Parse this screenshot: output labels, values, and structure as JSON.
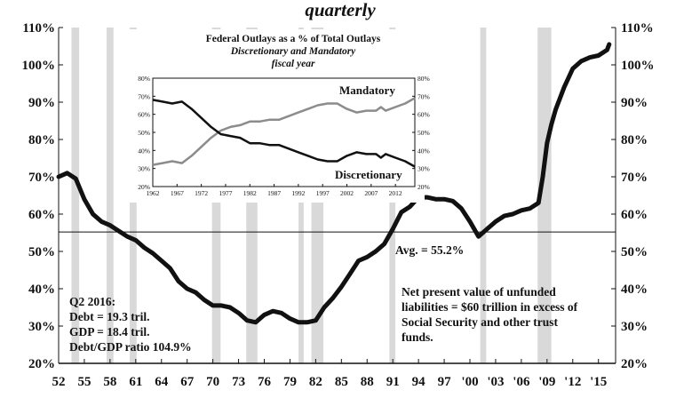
{
  "chart_data": {
    "type": "line",
    "title": "quarterly",
    "y_axis": {
      "min": 20,
      "max": 110,
      "tick_labels": [
        "20%",
        "30%",
        "40%",
        "50%",
        "60%",
        "70%",
        "80%",
        "90%",
        "100%",
        "110%"
      ]
    },
    "x_axis": {
      "min": 1952,
      "max": 2017,
      "tick_labels": [
        "52",
        "55",
        "58",
        "61",
        "64",
        "67",
        "70",
        "73",
        "76",
        "79",
        "82",
        "85",
        "88",
        "91",
        "94",
        "97",
        "'00",
        "'03",
        "'06",
        "'09",
        "'12",
        "'15"
      ]
    },
    "recessions": [
      [
        1953.5,
        1954.4
      ],
      [
        1957.6,
        1958.4
      ],
      [
        1960.3,
        1961.1
      ],
      [
        1969.9,
        1970.9
      ],
      [
        1973.9,
        1975.2
      ],
      [
        1980.0,
        1980.6
      ],
      [
        1981.5,
        1982.9
      ],
      [
        1990.6,
        1991.3
      ],
      [
        2001.2,
        2001.9
      ],
      [
        2007.9,
        2009.5
      ]
    ],
    "series": [
      {
        "points": [
          [
            1952.0,
            70.0
          ],
          [
            1953.0,
            71.0
          ],
          [
            1954.0,
            69.5
          ],
          [
            1955.0,
            64.0
          ],
          [
            1956.0,
            60.0
          ],
          [
            1957.0,
            58.0
          ],
          [
            1958.0,
            57.0
          ],
          [
            1959.0,
            55.5
          ],
          [
            1960.0,
            54.0
          ],
          [
            1961.0,
            53.0
          ],
          [
            1962.0,
            51.0
          ],
          [
            1963.0,
            49.5
          ],
          [
            1964.0,
            47.5
          ],
          [
            1965.0,
            45.5
          ],
          [
            1966.0,
            42.0
          ],
          [
            1967.0,
            40.0
          ],
          [
            1968.0,
            39.0
          ],
          [
            1969.0,
            37.0
          ],
          [
            1970.0,
            35.5
          ],
          [
            1971.0,
            35.5
          ],
          [
            1972.0,
            35.0
          ],
          [
            1973.0,
            33.5
          ],
          [
            1974.0,
            31.5
          ],
          [
            1975.0,
            31.0
          ],
          [
            1976.0,
            33.0
          ],
          [
            1977.0,
            34.0
          ],
          [
            1978.0,
            33.5
          ],
          [
            1979.0,
            32.0
          ],
          [
            1980.0,
            31.0
          ],
          [
            1981.0,
            31.0
          ],
          [
            1982.0,
            31.5
          ],
          [
            1983.0,
            35.0
          ],
          [
            1984.0,
            37.5
          ],
          [
            1985.0,
            40.5
          ],
          [
            1986.0,
            44.0
          ],
          [
            1987.0,
            47.5
          ],
          [
            1988.0,
            48.5
          ],
          [
            1989.0,
            50.0
          ],
          [
            1990.0,
            52.0
          ],
          [
            1991.0,
            56.0
          ],
          [
            1992.0,
            60.5
          ],
          [
            1993.0,
            62.0
          ],
          [
            1994.0,
            64.5
          ],
          [
            1995.0,
            64.5
          ],
          [
            1996.0,
            64.0
          ],
          [
            1997.0,
            64.0
          ],
          [
            1998.0,
            63.5
          ],
          [
            1999.0,
            61.5
          ],
          [
            2000.0,
            58.0
          ],
          [
            2001.0,
            54.0
          ],
          [
            2002.0,
            56.0
          ],
          [
            2003.0,
            58.0
          ],
          [
            2004.0,
            59.5
          ],
          [
            2005.0,
            60.0
          ],
          [
            2006.0,
            61.0
          ],
          [
            2007.0,
            61.5
          ],
          [
            2008.0,
            63.0
          ],
          [
            2008.5,
            70.0
          ],
          [
            2009.0,
            79.0
          ],
          [
            2009.5,
            84.0
          ],
          [
            2010.0,
            88.0
          ],
          [
            2010.5,
            91.0
          ],
          [
            2011.0,
            94.0
          ],
          [
            2012.0,
            99.0
          ],
          [
            2013.0,
            101.0
          ],
          [
            2014.0,
            102.0
          ],
          [
            2015.0,
            102.5
          ],
          [
            2016.0,
            104.0
          ],
          [
            2016.25,
            105.5
          ]
        ]
      }
    ],
    "average": {
      "value": 55.2,
      "label": "Avg. = 55.2%"
    },
    "annotations": {
      "left_note": [
        "Q2 2016:",
        "Debt = 19.3 tril.",
        "GDP = 18.4 tril.",
        "Debt/GDP ratio 104.9%"
      ],
      "right_note": [
        "Net present value of unfunded",
        "liabilities = $60 trillion in excess of",
        "Social Security and other trust",
        "funds."
      ]
    },
    "inset": {
      "type": "line",
      "title": "Federal Outlays as a % of Total Outlays",
      "subtitle": "Discretionary and Mandatory",
      "subtitle2": "fiscal year",
      "y_axis": {
        "min": 20,
        "max": 80,
        "tick_labels": [
          "20%",
          "30%",
          "40%",
          "50%",
          "60%",
          "70%",
          "80%"
        ]
      },
      "x_axis": {
        "min": 1962,
        "max": 2016,
        "tick_labels": [
          "1962",
          "1967",
          "1972",
          "1977",
          "1982",
          "1987",
          "1992",
          "1997",
          "2002",
          "2007",
          "2012"
        ]
      },
      "series": [
        {
          "name": "Mandatory",
          "color": "#8c8c8c",
          "points": [
            [
              1962,
              32
            ],
            [
              1964,
              33
            ],
            [
              1966,
              34
            ],
            [
              1968,
              33
            ],
            [
              1970,
              37
            ],
            [
              1972,
              42
            ],
            [
              1974,
              47
            ],
            [
              1976,
              51
            ],
            [
              1978,
              53
            ],
            [
              1980,
              54
            ],
            [
              1982,
              56
            ],
            [
              1984,
              56
            ],
            [
              1986,
              57
            ],
            [
              1988,
              57
            ],
            [
              1990,
              59
            ],
            [
              1992,
              61
            ],
            [
              1994,
              63
            ],
            [
              1996,
              65
            ],
            [
              1998,
              66
            ],
            [
              2000,
              66
            ],
            [
              2002,
              63
            ],
            [
              2004,
              61
            ],
            [
              2006,
              62
            ],
            [
              2008,
              62
            ],
            [
              2009,
              64
            ],
            [
              2010,
              62
            ],
            [
              2012,
              64
            ],
            [
              2014,
              66
            ],
            [
              2016,
              69
            ]
          ]
        },
        {
          "name": "Discretionary",
          "color": "#111111",
          "points": [
            [
              1962,
              68
            ],
            [
              1964,
              67
            ],
            [
              1966,
              66
            ],
            [
              1968,
              67
            ],
            [
              1970,
              63
            ],
            [
              1972,
              58
            ],
            [
              1974,
              53
            ],
            [
              1976,
              49
            ],
            [
              1978,
              48
            ],
            [
              1980,
              47
            ],
            [
              1982,
              44
            ],
            [
              1984,
              44
            ],
            [
              1986,
              43
            ],
            [
              1988,
              43
            ],
            [
              1990,
              41
            ],
            [
              1992,
              39
            ],
            [
              1994,
              37
            ],
            [
              1996,
              35
            ],
            [
              1998,
              34
            ],
            [
              2000,
              34
            ],
            [
              2002,
              37
            ],
            [
              2004,
              39
            ],
            [
              2006,
              38
            ],
            [
              2008,
              38
            ],
            [
              2009,
              36
            ],
            [
              2010,
              38
            ],
            [
              2012,
              36
            ],
            [
              2014,
              34
            ],
            [
              2016,
              31
            ]
          ]
        }
      ]
    }
  }
}
